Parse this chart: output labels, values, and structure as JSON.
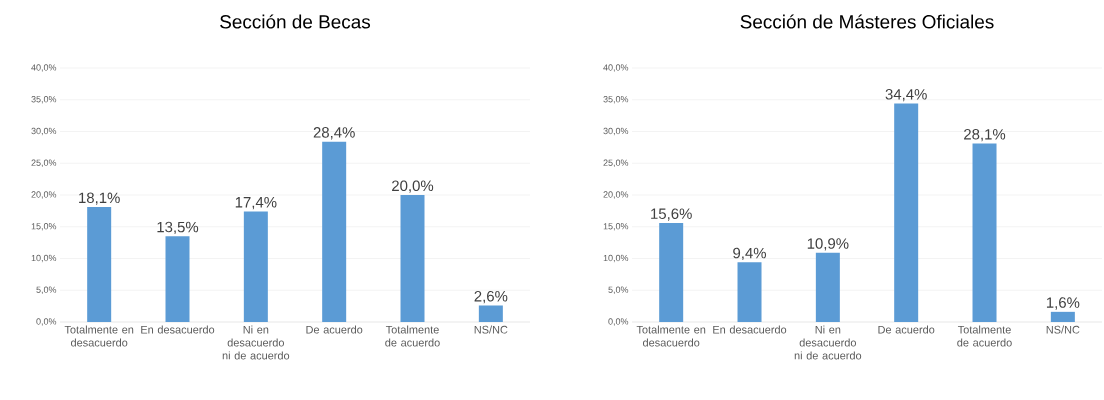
{
  "chart_data": [
    {
      "type": "bar",
      "title": "Sección de Becas",
      "categories": [
        "Totalmente en desacuerdo",
        "En desacuerdo",
        "Ni en desacuerdo ni de acuerdo",
        "De acuerdo",
        "Totalmente de acuerdo",
        "NS/NC"
      ],
      "values": [
        18.1,
        13.5,
        17.4,
        28.4,
        20.0,
        2.6
      ],
      "value_labels": [
        "18,1%",
        "13,5%",
        "17,4%",
        "28,4%",
        "20,0%",
        "2,6%"
      ],
      "color": "#5b9bd5",
      "ylim": [
        0,
        40
      ],
      "yticks": [
        {
          "value": 0,
          "label": "0,0%"
        },
        {
          "value": 5,
          "label": "5,0%"
        },
        {
          "value": 10,
          "label": "10,0%"
        },
        {
          "value": 15,
          "label": "15,0%"
        },
        {
          "value": 20,
          "label": "20,0%"
        },
        {
          "value": 25,
          "label": "25,0%"
        },
        {
          "value": 30,
          "label": "30,0%"
        },
        {
          "value": 35,
          "label": "35,0%"
        },
        {
          "value": 40,
          "label": "40,0%"
        }
      ],
      "grid": "y"
    },
    {
      "type": "bar",
      "title": "Sección de Másteres Oficiales",
      "categories": [
        "Totalmente en desacuerdo",
        "En desacuerdo",
        "Ni en desacuerdo ni de acuerdo",
        "De acuerdo",
        "Totalmente de acuerdo",
        "NS/NC"
      ],
      "values": [
        15.6,
        9.4,
        10.9,
        34.4,
        28.1,
        1.6
      ],
      "value_labels": [
        "15,6%",
        "9,4%",
        "10,9%",
        "34,4%",
        "28,1%",
        "1,6%"
      ],
      "color": "#5b9bd5",
      "ylim": [
        0,
        40
      ],
      "yticks": [
        {
          "value": 0,
          "label": "0,0%"
        },
        {
          "value": 5,
          "label": "5,0%"
        },
        {
          "value": 10,
          "label": "10,0%"
        },
        {
          "value": 15,
          "label": "15,0%"
        },
        {
          "value": 20,
          "label": "20,0%"
        },
        {
          "value": 25,
          "label": "25,0%"
        },
        {
          "value": 30,
          "label": "30,0%"
        },
        {
          "value": 35,
          "label": "35,0%"
        },
        {
          "value": 40,
          "label": "40,0%"
        }
      ],
      "grid": "y"
    }
  ]
}
